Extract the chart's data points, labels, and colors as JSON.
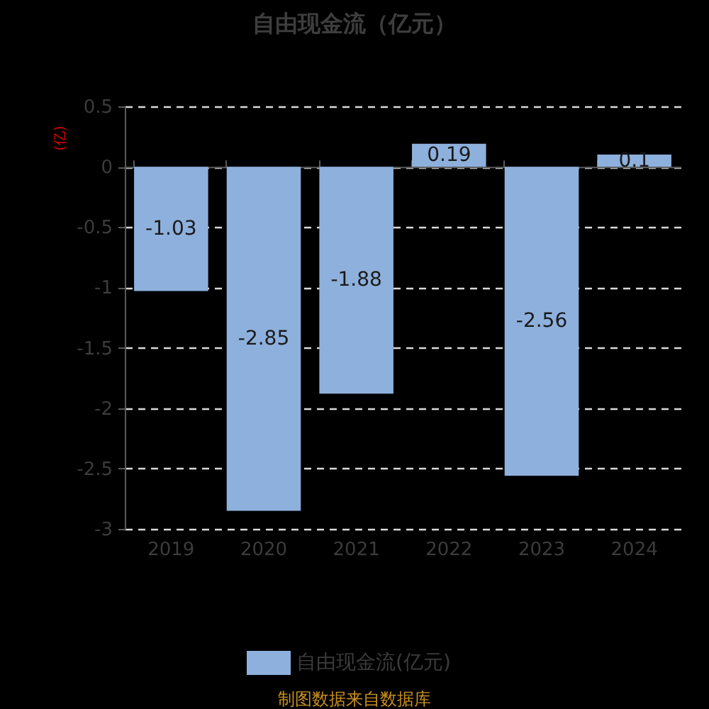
{
  "chart_data": {
    "type": "bar",
    "title": "自由现金流（亿元）",
    "ylabel": "(亿)",
    "categories": [
      "2019",
      "2020",
      "2021",
      "2022",
      "2023",
      "2024"
    ],
    "series": [
      {
        "name": "自由现金流(亿元)",
        "color": "#8eb0dc",
        "values": [
          -1.03,
          -2.85,
          -1.88,
          0.19,
          -2.56,
          0.1
        ]
      }
    ],
    "ylim": [
      -3,
      0.5
    ],
    "yticks": [
      0.5,
      0,
      -0.5,
      -1,
      -1.5,
      -2,
      -2.5,
      -3
    ],
    "grid": "y",
    "legend": "bottom",
    "data_labels": true,
    "annotations": [
      "制图数据来自数据库"
    ]
  }
}
